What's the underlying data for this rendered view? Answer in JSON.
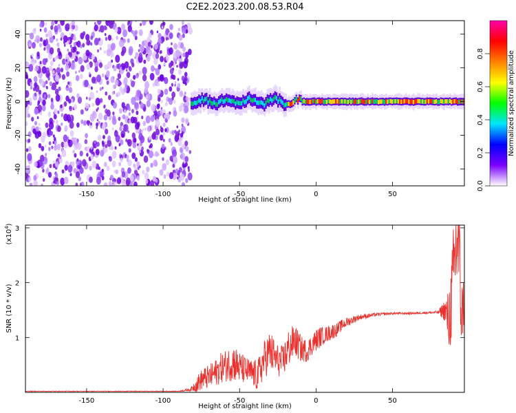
{
  "title": "C2E2.2023.200.08.53.R04",
  "chart_data": [
    {
      "type": "heatmap",
      "xlabel": "Height of straight line (km)",
      "ylabel": "Frequency (Hz)",
      "xlim": [
        -190,
        97
      ],
      "ylim": [
        -50,
        48
      ],
      "xticks": [
        -150,
        -100,
        -50,
        0,
        50
      ],
      "yticks": [
        -40,
        -20,
        0,
        20,
        40
      ],
      "colorbar": {
        "label": "Normalized spectral amplitude",
        "range": [
          0,
          1
        ],
        "ticks": [
          0.0,
          0.2,
          0.4,
          0.6,
          0.8
        ],
        "colormap": [
          "#ffffff",
          "#7b00ff",
          "#0000ff",
          "#00e5ff",
          "#00ff00",
          "#ffff00",
          "#ff8000",
          "#ff0000",
          "#ff00aa"
        ]
      },
      "noise_region_x": [
        -190,
        -82
      ],
      "signal_region_x": [
        -82,
        97
      ],
      "signal_band_hz": [
        -5,
        5
      ]
    },
    {
      "type": "line",
      "xlabel": "Height of straight line (km)",
      "ylabel": "SNR (10 * v/v)",
      "y_multiplier": "(x10",
      "y_multiplier_exp": "4",
      "y_multiplier_close": ")",
      "xlim": [
        -190,
        97
      ],
      "ylim": [
        0,
        3.05
      ],
      "xticks": [
        -150,
        -100,
        -50,
        0,
        50
      ],
      "yticks": [
        1,
        2,
        3
      ],
      "color": "#e8322e",
      "series": [
        {
          "x": [
            -190,
            -90,
            -82,
            -78,
            -74,
            -70,
            -66,
            -62,
            -58,
            -54,
            -50,
            -46,
            -42,
            -38,
            -34,
            -30,
            -26,
            -22,
            -18,
            -14,
            -10,
            -6,
            -2,
            2,
            6,
            10,
            14,
            18,
            22,
            26,
            30,
            40,
            50,
            60,
            70,
            80,
            84,
            87,
            89,
            91,
            93,
            95,
            97
          ],
          "y": [
            0.02,
            0.02,
            0.05,
            0.15,
            0.25,
            0.28,
            0.35,
            0.45,
            0.5,
            0.55,
            0.45,
            0.4,
            0.35,
            0.3,
            0.6,
            0.75,
            0.6,
            0.55,
            0.8,
            0.95,
            0.8,
            0.75,
            0.9,
            1.0,
            1.05,
            1.1,
            1.15,
            1.25,
            1.3,
            1.35,
            1.38,
            1.42,
            1.44,
            1.44,
            1.45,
            1.46,
            1.5,
            1.3,
            1.8,
            2.5,
            2.9,
            1.4,
            1.7
          ],
          "noise_amplitude": [
            0.005,
            0.005,
            0.03,
            0.15,
            0.2,
            0.22,
            0.25,
            0.28,
            0.3,
            0.35,
            0.3,
            0.25,
            0.25,
            0.3,
            0.35,
            0.4,
            0.3,
            0.3,
            0.35,
            0.3,
            0.25,
            0.2,
            0.2,
            0.2,
            0.15,
            0.15,
            0.12,
            0.1,
            0.08,
            0.06,
            0.05,
            0.03,
            0.02,
            0.02,
            0.02,
            0.03,
            0.2,
            0.6,
            0.9,
            1.0,
            1.2,
            0.6,
            0.5
          ]
        }
      ]
    }
  ]
}
